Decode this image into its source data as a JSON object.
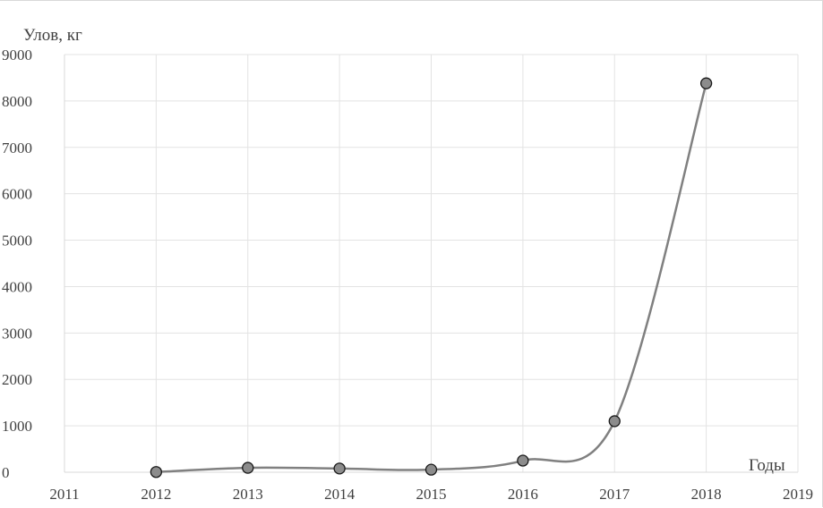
{
  "chart_data": {
    "type": "scatter",
    "ylabel": "Улов, кг",
    "xlabel": "Годы",
    "xlim": [
      2011,
      2019
    ],
    "ylim": [
      0,
      9000
    ],
    "x_ticks": [
      "2011",
      "2012",
      "2013",
      "2014",
      "2015",
      "2016",
      "2017",
      "2018",
      "2019"
    ],
    "y_ticks": [
      "0",
      "1000",
      "2000",
      "3000",
      "4000",
      "5000",
      "6000",
      "7000",
      "8000",
      "9000"
    ],
    "grid": true,
    "smooth": true,
    "series": [
      {
        "x": [
          2012,
          2013,
          2014,
          2015,
          2016,
          2017,
          2018
        ],
        "values": [
          5,
          95,
          80,
          55,
          250,
          1100,
          8380
        ],
        "color": "#808080",
        "marker_color": "#8c8c8c"
      }
    ]
  }
}
